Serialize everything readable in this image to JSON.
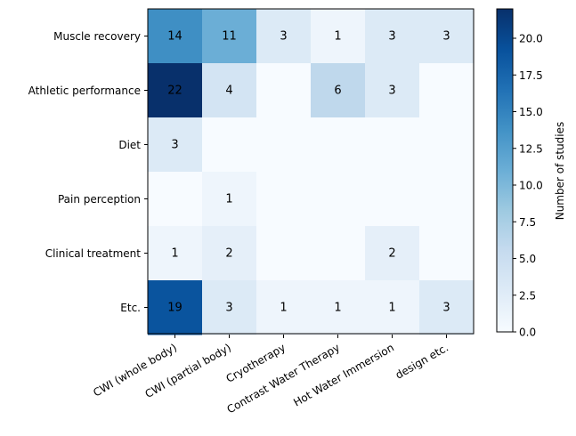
{
  "chart_data": {
    "type": "heatmap",
    "rows": [
      "Muscle recovery",
      "Athletic performance",
      "Diet",
      "Pain perception",
      "Clinical treatment",
      "Etc."
    ],
    "columns": [
      "CWI (whole body)",
      "CWI (partial body)",
      "Cryotherapy",
      "Contrast Water Therapy",
      "Hot Water Immersion",
      "design etc."
    ],
    "values": [
      [
        14,
        11,
        3,
        1,
        3,
        3
      ],
      [
        22,
        4,
        0,
        6,
        3,
        0
      ],
      [
        3,
        0,
        0,
        0,
        0,
        0
      ],
      [
        0,
        1,
        0,
        0,
        0,
        0
      ],
      [
        1,
        2,
        0,
        0,
        2,
        0
      ],
      [
        19,
        3,
        1,
        1,
        1,
        3
      ]
    ],
    "colorbar": {
      "label": "Number of studies",
      "min": 0,
      "max": 22,
      "ticks": [
        "0.0",
        "2.5",
        "5.0",
        "7.5",
        "10.0",
        "12.5",
        "15.0",
        "17.5",
        "20.0"
      ],
      "colormap": "Blues"
    },
    "grid": false
  }
}
